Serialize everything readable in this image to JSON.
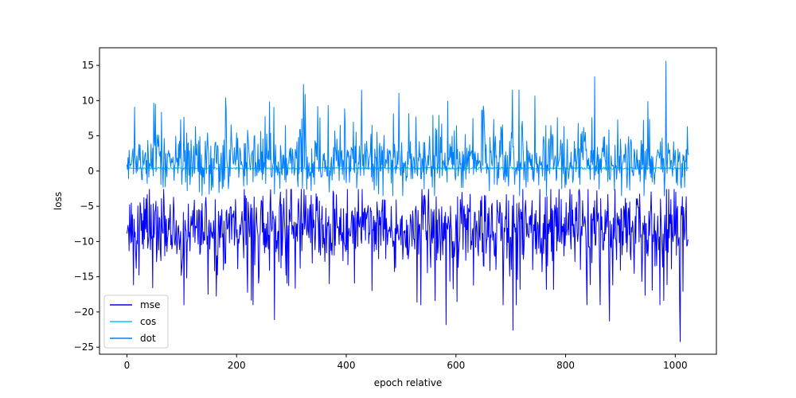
{
  "chart_data": {
    "type": "line",
    "title": "",
    "xlabel": "epoch relative",
    "ylabel": "loss",
    "xlim": [
      -50,
      1075
    ],
    "ylim": [
      -26,
      17.5
    ],
    "xticks": [
      0,
      200,
      400,
      600,
      800,
      1000
    ],
    "yticks": [
      -25,
      -20,
      -15,
      -10,
      -5,
      0,
      5,
      10,
      15
    ],
    "grid": false,
    "legend_position": "lower-left",
    "n_points": 1025,
    "series": [
      {
        "name": "mse",
        "color": "#0000ff",
        "approx_mean": -8,
        "approx_range": [
          -24.2,
          -2.5
        ],
        "notable_points": [
          {
            "x": 269,
            "y": -21.1
          },
          {
            "x": 582,
            "y": -21.8
          },
          {
            "x": 704,
            "y": -22.6
          },
          {
            "x": 880,
            "y": -21.3
          },
          {
            "x": 1009,
            "y": -24.2
          }
        ]
      },
      {
        "name": "cos",
        "color": "#00ccff",
        "approx_mean": 0.4,
        "approx_range": [
          -0.4,
          1.0
        ],
        "notable_points": []
      },
      {
        "name": "dot",
        "color": "#0080ff",
        "approx_mean": 1,
        "approx_range": [
          -3.5,
          15.6
        ],
        "notable_points": [
          {
            "x": 322,
            "y": 12.3
          },
          {
            "x": 853,
            "y": 13.4
          },
          {
            "x": 983,
            "y": 15.6
          }
        ]
      }
    ]
  }
}
